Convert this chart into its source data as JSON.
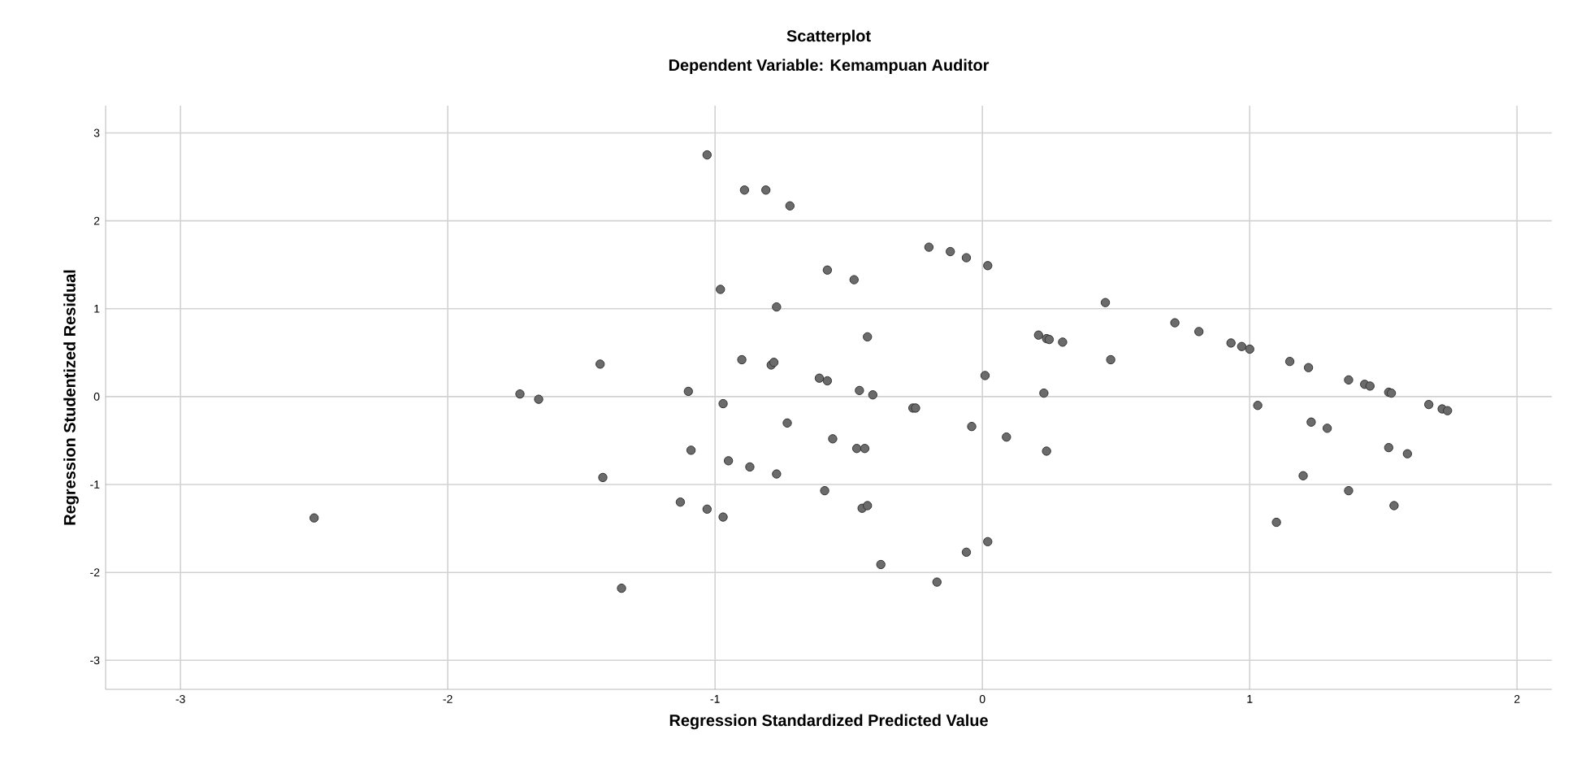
{
  "chart_data": {
    "type": "scatter",
    "title": "Scatterplot",
    "subtitle": "Dependent Variable: Kemampuan Auditor",
    "xlabel": "Regression Standardized Predicted Value",
    "ylabel": "Regression Studentized Residual",
    "x": [
      -2.5,
      -1.73,
      -1.66,
      -1.43,
      -1.42,
      -1.35,
      -1.13,
      -1.1,
      -1.09,
      -1.03,
      -1.03,
      -0.98,
      -0.97,
      -0.97,
      -0.95,
      -0.9,
      -0.89,
      -0.87,
      -0.81,
      -0.79,
      -0.78,
      -0.77,
      -0.77,
      -0.73,
      -0.72,
      -0.61,
      -0.58,
      -0.59,
      -0.58,
      -0.56,
      -0.48,
      -0.47,
      -0.46,
      -0.45,
      -0.43,
      -0.44,
      -0.43,
      -0.41,
      -0.38,
      -0.26,
      -0.25,
      -0.2,
      -0.17,
      -0.12,
      -0.04,
      -0.06,
      -0.06,
      0.01,
      0.02,
      0.02,
      0.09,
      0.21,
      0.23,
      0.24,
      0.24,
      0.25,
      0.3,
      0.46,
      0.48,
      0.72,
      0.81,
      0.93,
      0.97,
      1.0,
      1.03,
      1.1,
      1.15,
      1.2,
      1.22,
      1.23,
      1.29,
      1.37,
      1.37,
      1.43,
      1.45,
      1.52,
      1.52,
      1.53,
      1.54,
      1.59,
      1.67,
      1.72,
      1.74
    ],
    "values": [
      -1.38,
      0.03,
      -0.03,
      0.37,
      -0.92,
      -2.18,
      -1.2,
      0.06,
      -0.61,
      2.75,
      -1.28,
      1.22,
      -0.08,
      -1.37,
      -0.73,
      0.42,
      2.35,
      -0.8,
      2.35,
      0.36,
      0.39,
      -0.88,
      1.02,
      -0.3,
      2.17,
      0.21,
      0.18,
      -1.07,
      1.44,
      -0.48,
      1.33,
      -0.59,
      0.07,
      -1.27,
      0.68,
      -0.59,
      -1.24,
      0.02,
      -1.91,
      -0.13,
      -0.13,
      1.7,
      -2.11,
      1.65,
      -0.34,
      -1.77,
      1.58,
      0.24,
      1.49,
      -1.65,
      -0.46,
      0.7,
      0.04,
      0.66,
      -0.62,
      0.65,
      0.62,
      1.07,
      0.42,
      0.84,
      0.74,
      0.61,
      0.57,
      0.54,
      -0.1,
      -1.43,
      0.4,
      -0.9,
      0.33,
      -0.29,
      -0.36,
      0.19,
      -1.07,
      0.14,
      0.12,
      0.05,
      -0.58,
      0.04,
      -1.24,
      -0.65,
      -0.09,
      -0.14,
      -0.16
    ],
    "color": "#6b6b6b",
    "marker": "circle",
    "grid": true,
    "xlim": [
      -3.28,
      2.13
    ],
    "ylim": [
      -3.33,
      3.31
    ],
    "xticks": [
      -3,
      -2,
      -1,
      0,
      1,
      2
    ],
    "yticks": [
      -3,
      -2,
      -1,
      0,
      1,
      2,
      3
    ]
  }
}
